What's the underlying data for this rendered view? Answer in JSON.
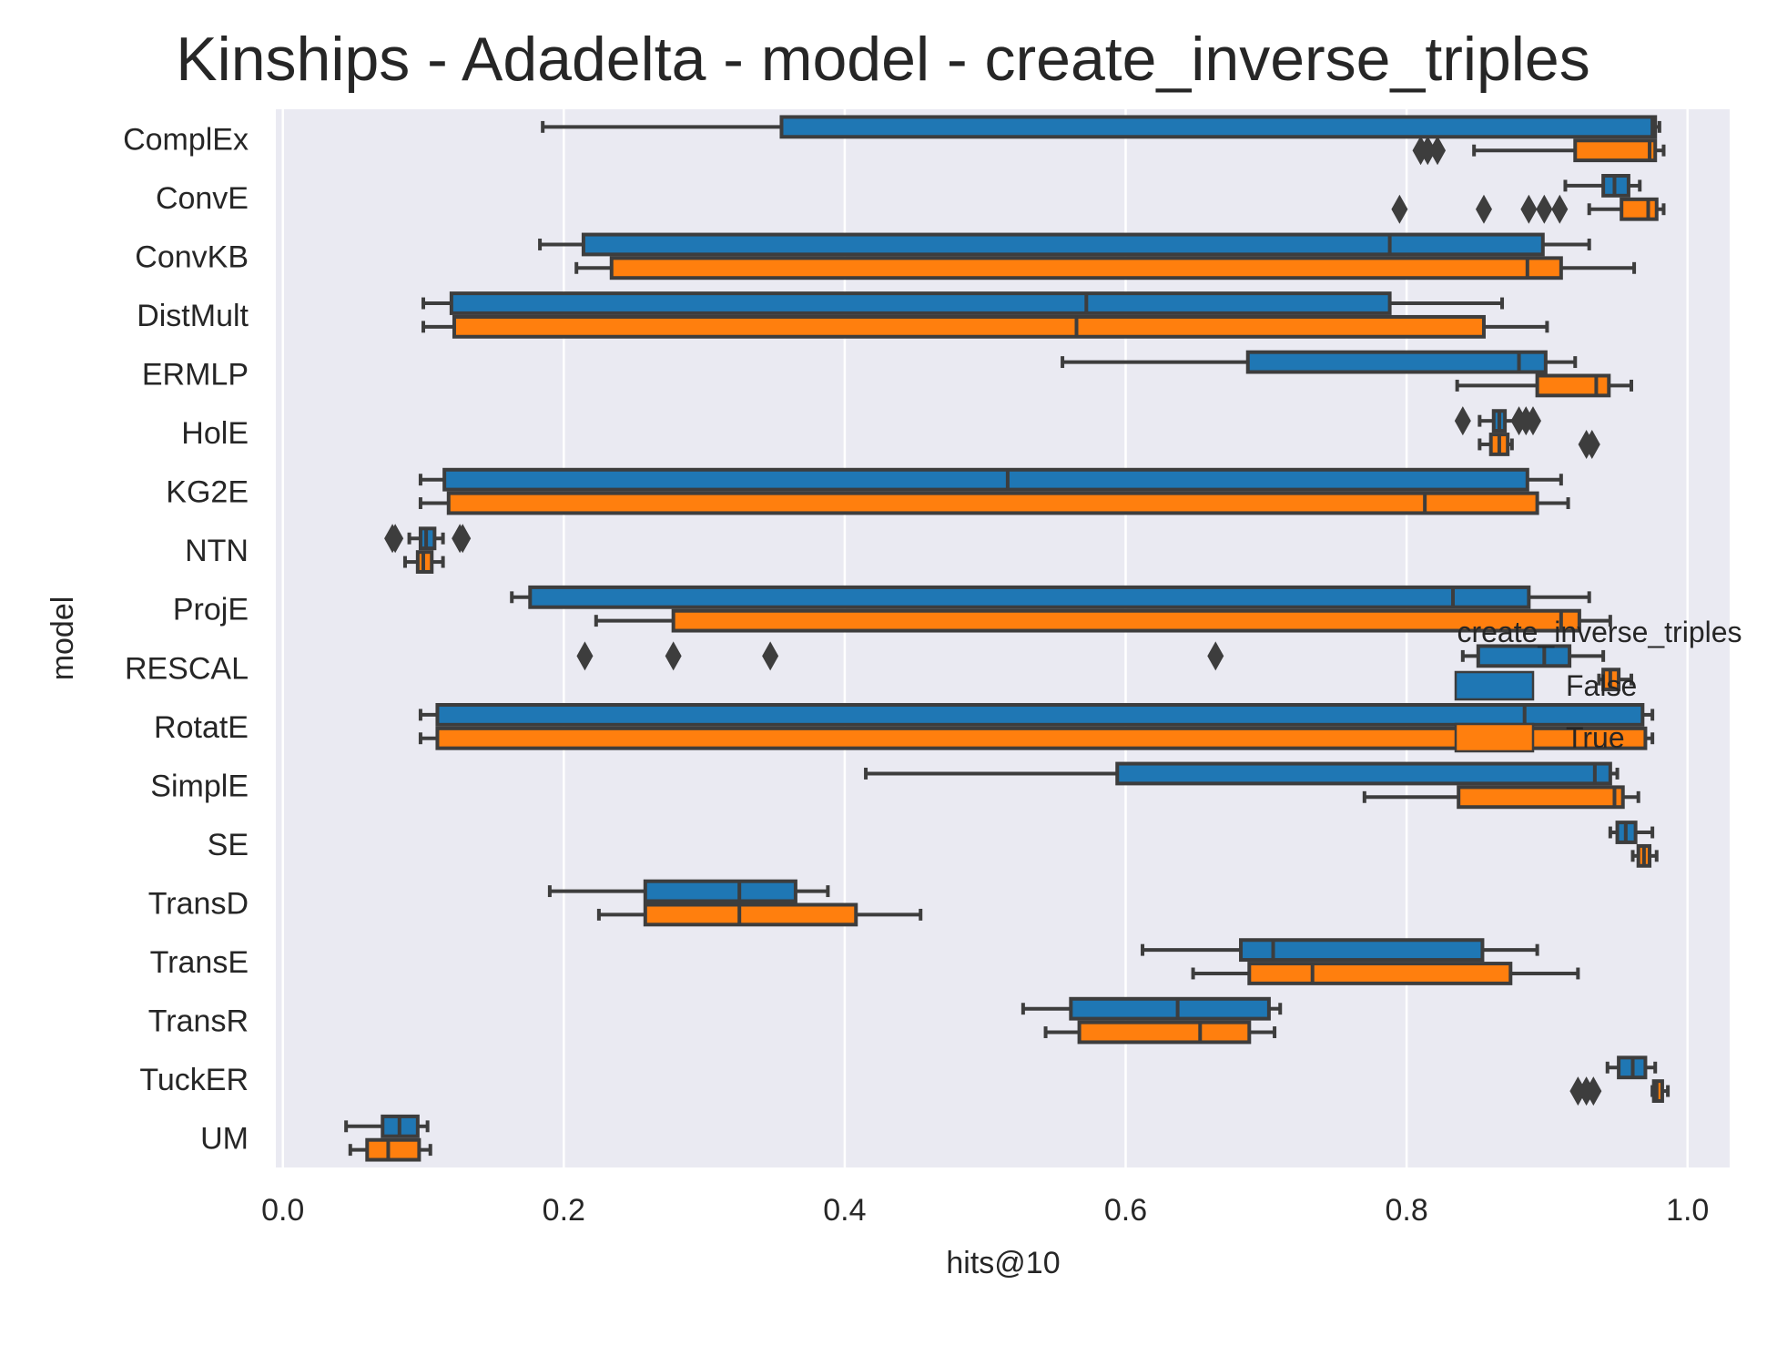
{
  "chart_data": {
    "type": "boxplot",
    "orientation": "horizontal",
    "title": "Kinships - Adadelta - model - create_inverse_triples",
    "xlabel": "hits@10",
    "ylabel": "model",
    "xlim": [
      -0.005,
      1.03
    ],
    "xticks": [
      "0.0",
      "0.2",
      "0.4",
      "0.6",
      "0.8",
      "1.0"
    ],
    "grid": true,
    "legend": {
      "title": "create_inverse_triples",
      "placement": "center-right"
    },
    "categories": [
      "ComplEx",
      "ConvE",
      "ConvKB",
      "DistMult",
      "ERMLP",
      "HolE",
      "KG2E",
      "NTN",
      "ProjE",
      "RESCAL",
      "RotatE",
      "SimplE",
      "SE",
      "TransD",
      "TransE",
      "TransR",
      "TuckER",
      "UM"
    ],
    "series": [
      {
        "name": "False",
        "color": "#1f77b4",
        "boxes": [
          {
            "whislo": 0.185,
            "q1": 0.355,
            "med": 0.975,
            "q3": 0.977,
            "whishi": 0.98,
            "fliers": []
          },
          {
            "whislo": 0.913,
            "q1": 0.94,
            "med": 0.948,
            "q3": 0.958,
            "whishi": 0.966,
            "fliers": []
          },
          {
            "whislo": 0.183,
            "q1": 0.214,
            "med": 0.788,
            "q3": 0.897,
            "whishi": 0.93,
            "fliers": []
          },
          {
            "whislo": 0.1,
            "q1": 0.12,
            "med": 0.572,
            "q3": 0.788,
            "whishi": 0.868,
            "fliers": []
          },
          {
            "whislo": 0.555,
            "q1": 0.687,
            "med": 0.88,
            "q3": 0.899,
            "whishi": 0.92,
            "fliers": []
          },
          {
            "whislo": 0.852,
            "q1": 0.862,
            "med": 0.866,
            "q3": 0.87,
            "whishi": 0.878,
            "fliers": [
              0.84,
              0.88,
              0.885,
              0.89
            ]
          },
          {
            "whislo": 0.098,
            "q1": 0.115,
            "med": 0.516,
            "q3": 0.886,
            "whishi": 0.91,
            "fliers": []
          },
          {
            "whislo": 0.09,
            "q1": 0.098,
            "med": 0.102,
            "q3": 0.108,
            "whishi": 0.114,
            "fliers": [
              0.078,
              0.08,
              0.126,
              0.128
            ]
          },
          {
            "whislo": 0.163,
            "q1": 0.176,
            "med": 0.833,
            "q3": 0.887,
            "whishi": 0.93,
            "fliers": []
          },
          {
            "whislo": 0.84,
            "q1": 0.851,
            "med": 0.898,
            "q3": 0.916,
            "whishi": 0.94,
            "fliers": [
              0.215,
              0.278,
              0.347,
              0.664
            ]
          },
          {
            "whislo": 0.098,
            "q1": 0.11,
            "med": 0.884,
            "q3": 0.968,
            "whishi": 0.975,
            "fliers": []
          },
          {
            "whislo": 0.415,
            "q1": 0.594,
            "med": 0.934,
            "q3": 0.945,
            "whishi": 0.95,
            "fliers": []
          },
          {
            "whislo": 0.945,
            "q1": 0.95,
            "med": 0.956,
            "q3": 0.963,
            "whishi": 0.975,
            "fliers": []
          },
          {
            "whislo": 0.19,
            "q1": 0.258,
            "med": 0.325,
            "q3": 0.365,
            "whishi": 0.388,
            "fliers": []
          },
          {
            "whislo": 0.612,
            "q1": 0.682,
            "med": 0.705,
            "q3": 0.854,
            "whishi": 0.893,
            "fliers": []
          },
          {
            "whislo": 0.527,
            "q1": 0.561,
            "med": 0.637,
            "q3": 0.702,
            "whishi": 0.71,
            "fliers": []
          },
          {
            "whislo": 0.943,
            "q1": 0.951,
            "med": 0.961,
            "q3": 0.97,
            "whishi": 0.977,
            "fliers": []
          },
          {
            "whislo": 0.045,
            "q1": 0.071,
            "med": 0.083,
            "q3": 0.096,
            "whishi": 0.103,
            "fliers": []
          }
        ]
      },
      {
        "name": "True",
        "color": "#ff7f0e",
        "boxes": [
          {
            "whislo": 0.848,
            "q1": 0.92,
            "med": 0.973,
            "q3": 0.977,
            "whishi": 0.983,
            "fliers": [
              0.81,
              0.815,
              0.822
            ]
          },
          {
            "whislo": 0.93,
            "q1": 0.953,
            "med": 0.972,
            "q3": 0.978,
            "whishi": 0.983,
            "fliers": [
              0.795,
              0.855,
              0.887,
              0.898,
              0.909
            ]
          },
          {
            "whislo": 0.209,
            "q1": 0.234,
            "med": 0.886,
            "q3": 0.91,
            "whishi": 0.962,
            "fliers": []
          },
          {
            "whislo": 0.1,
            "q1": 0.122,
            "med": 0.565,
            "q3": 0.855,
            "whishi": 0.9,
            "fliers": []
          },
          {
            "whislo": 0.836,
            "q1": 0.893,
            "med": 0.935,
            "q3": 0.944,
            "whishi": 0.96,
            "fliers": []
          },
          {
            "whislo": 0.852,
            "q1": 0.86,
            "med": 0.866,
            "q3": 0.872,
            "whishi": 0.875,
            "fliers": [
              0.928,
              0.932
            ]
          },
          {
            "whislo": 0.098,
            "q1": 0.118,
            "med": 0.813,
            "q3": 0.893,
            "whishi": 0.915,
            "fliers": []
          },
          {
            "whislo": 0.087,
            "q1": 0.096,
            "med": 0.1,
            "q3": 0.106,
            "whishi": 0.114,
            "fliers": []
          },
          {
            "whislo": 0.223,
            "q1": 0.278,
            "med": 0.91,
            "q3": 0.923,
            "whishi": 0.945,
            "fliers": []
          },
          {
            "whislo": 0.937,
            "q1": 0.94,
            "med": 0.945,
            "q3": 0.951,
            "whishi": 0.96,
            "fliers": []
          },
          {
            "whislo": 0.098,
            "q1": 0.11,
            "med": 0.886,
            "q3": 0.97,
            "whishi": 0.975,
            "fliers": []
          },
          {
            "whislo": 0.77,
            "q1": 0.837,
            "med": 0.948,
            "q3": 0.954,
            "whishi": 0.965,
            "fliers": []
          },
          {
            "whislo": 0.961,
            "q1": 0.965,
            "med": 0.969,
            "q3": 0.973,
            "whishi": 0.978,
            "fliers": []
          },
          {
            "whislo": 0.225,
            "q1": 0.258,
            "med": 0.325,
            "q3": 0.408,
            "whishi": 0.454,
            "fliers": []
          },
          {
            "whislo": 0.648,
            "q1": 0.688,
            "med": 0.733,
            "q3": 0.874,
            "whishi": 0.922,
            "fliers": []
          },
          {
            "whislo": 0.543,
            "q1": 0.567,
            "med": 0.653,
            "q3": 0.688,
            "whishi": 0.706,
            "fliers": []
          },
          {
            "whislo": 0.975,
            "q1": 0.976,
            "med": 0.978,
            "q3": 0.982,
            "whishi": 0.986,
            "fliers": [
              0.922,
              0.928,
              0.933
            ]
          },
          {
            "whislo": 0.048,
            "q1": 0.06,
            "med": 0.075,
            "q3": 0.097,
            "whishi": 0.105,
            "fliers": []
          }
        ]
      }
    ]
  }
}
